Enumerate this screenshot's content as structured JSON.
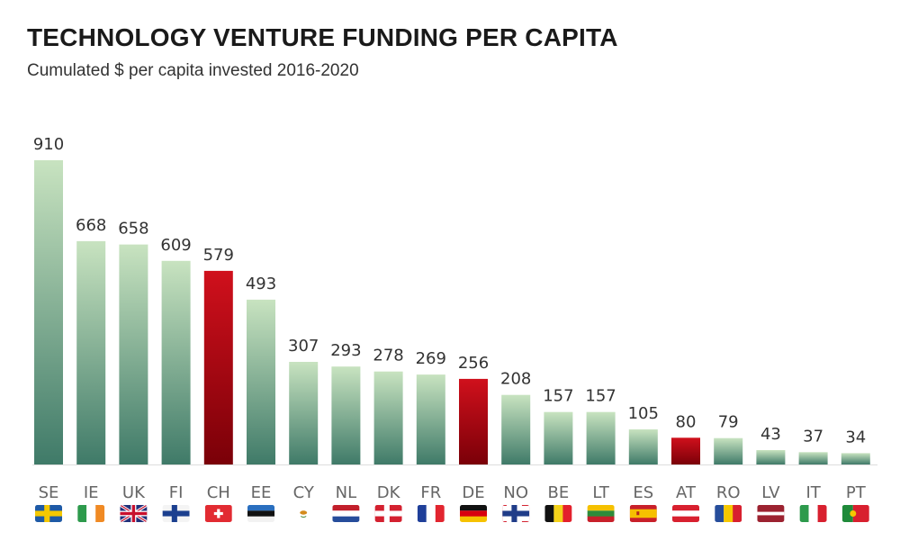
{
  "title": "TECHNOLOGY VENTURE FUNDING PER CAPITA",
  "subtitle": "Cumulated $ per capita invested 2016-2020",
  "colors": {
    "green_top": "#c8e3c0",
    "green_bottom": "#3f7a68",
    "red_top": "#d0101c",
    "red_bottom": "#7a0008",
    "baseline": "#dddddd"
  },
  "chart_data": {
    "type": "bar",
    "title": "TECHNOLOGY VENTURE FUNDING PER CAPITA",
    "subtitle": "Cumulated $ per capita invested 2016-2020",
    "xlabel": "",
    "ylabel": "",
    "grid": false,
    "categories": [
      "SE",
      "IE",
      "UK",
      "FI",
      "CH",
      "EE",
      "CY",
      "NL",
      "DK",
      "FR",
      "DE",
      "NO",
      "BE",
      "LT",
      "ES",
      "AT",
      "RO",
      "LV",
      "IT",
      "PT"
    ],
    "values": [
      910,
      668,
      658,
      609,
      579,
      493,
      307,
      293,
      278,
      269,
      256,
      208,
      157,
      157,
      105,
      80,
      79,
      43,
      37,
      34
    ],
    "highlighted": [
      "CH",
      "DE",
      "AT"
    ],
    "flags": [
      "flag-sweden-icon",
      "flag-ireland-icon",
      "flag-uk-icon",
      "flag-finland-icon",
      "flag-switzerland-icon",
      "flag-estonia-icon",
      "flag-cyprus-icon",
      "flag-netherlands-icon",
      "flag-denmark-icon",
      "flag-france-icon",
      "flag-germany-icon",
      "flag-norway-icon",
      "flag-belgium-icon",
      "flag-lithuania-icon",
      "flag-spain-icon",
      "flag-austria-icon",
      "flag-romania-icon",
      "flag-latvia-icon",
      "flag-italy-icon",
      "flag-portugal-icon"
    ]
  }
}
